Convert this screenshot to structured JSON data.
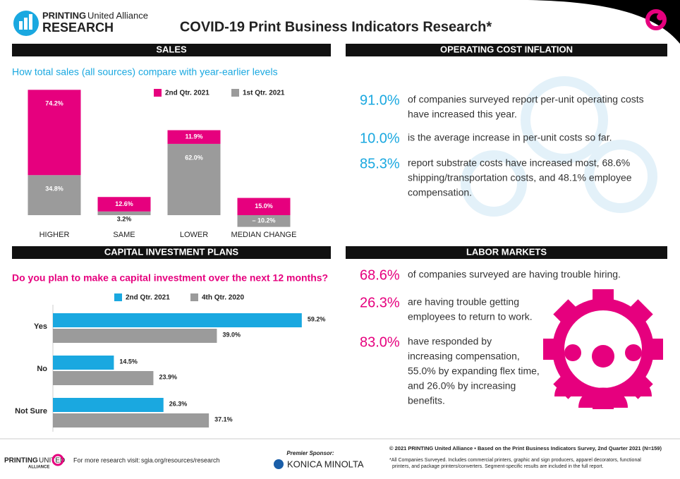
{
  "header": {
    "logo_brand": "PRINTING",
    "logo_sub": "United Alliance",
    "logo_research": "RESEARCH",
    "title": "COVID-19 Print Business Indicators Research*"
  },
  "sections": {
    "sales": "SALES",
    "operating_cost": "OPERATING COST INFLATION",
    "capital": "CAPITAL INVESTMENT PLANS",
    "labor": "LABOR MARKETS"
  },
  "chart_data": [
    {
      "type": "bar",
      "stacked": true,
      "subtitle": "How total sales (all sources) compare with year-earlier levels",
      "categories": [
        "HIGHER",
        "SAME",
        "LOWER",
        "MEDIAN CHANGE"
      ],
      "series": [
        {
          "name": "2nd Qtr. 2021",
          "color": "#e6007e",
          "values": [
            74.2,
            12.6,
            11.9,
            15.0
          ],
          "value_labels": [
            "74.2%",
            "12.6%",
            "11.9%",
            "15.0%"
          ]
        },
        {
          "name": "1st Qtr. 2021",
          "color": "#9b9b9b",
          "values": [
            34.8,
            3.2,
            62.0,
            -10.2
          ],
          "value_labels": [
            "34.8%",
            "3.2%",
            "62.0%",
            "– 10.2%"
          ]
        }
      ]
    },
    {
      "type": "hbar",
      "title": "Do you plan to make a capital investment over the next 12 months?",
      "categories": [
        "Yes",
        "No",
        "Not Sure"
      ],
      "series": [
        {
          "name": "2nd Qtr. 2021",
          "color": "#1aa8e0",
          "values": [
            59.2,
            14.5,
            26.3
          ],
          "value_labels": [
            "59.2%",
            "14.5%",
            "26.3%"
          ]
        },
        {
          "name": "4th Qtr. 2020",
          "color": "#9b9b9b",
          "values": [
            39.0,
            23.9,
            37.1
          ],
          "value_labels": [
            "39.0%",
            "23.9%",
            "37.1%"
          ]
        }
      ]
    }
  ],
  "operating_cost": {
    "stats": [
      {
        "value": "91.0%",
        "lines": [
          "of companies surveyed report per-unit operating costs",
          "have increased this year."
        ]
      },
      {
        "value": "10.0%",
        "lines": [
          "is the average increase in per-unit costs so far."
        ]
      },
      {
        "value": "85.3%",
        "lines": [
          "report substrate costs have increased most, 68.6%",
          "shipping/transportation costs, and 48.1% employee",
          "compensation."
        ]
      }
    ]
  },
  "labor_markets": {
    "stats": [
      {
        "value": "68.6%",
        "lines": [
          "of companies surveyed are having trouble hiring."
        ]
      },
      {
        "value": "26.3%",
        "lines": [
          "are having trouble getting",
          "employees to return to work."
        ]
      },
      {
        "value": "83.0%",
        "lines": [
          "have responded by",
          "increasing compensation,",
          "55.0% by expanding flex time,",
          "and 26.0% by increasing",
          "benefits."
        ]
      }
    ]
  },
  "footer": {
    "logo_brand": "PRINTING",
    "logo_united": "UNITED",
    "logo_alliance": "ALLIANCE",
    "visit_text": "For more research visit:",
    "visit_link": "sgia.org/resources/research",
    "sponsor_label": "Premier Sponsor:",
    "sponsor": "KONICA MINOLTA",
    "copyright": "© 2021 PRINTING United Alliance • Based on the Print Business Indicators Survey, 2nd Quarter 2021 (N=159)",
    "note_lines": [
      "*All Companies Surveyed. Includes commercial printers, graphic and sign producers, apparel decorators, functional",
      "printers, and package printers/converters. Segment-specific results are included in the full report."
    ]
  }
}
